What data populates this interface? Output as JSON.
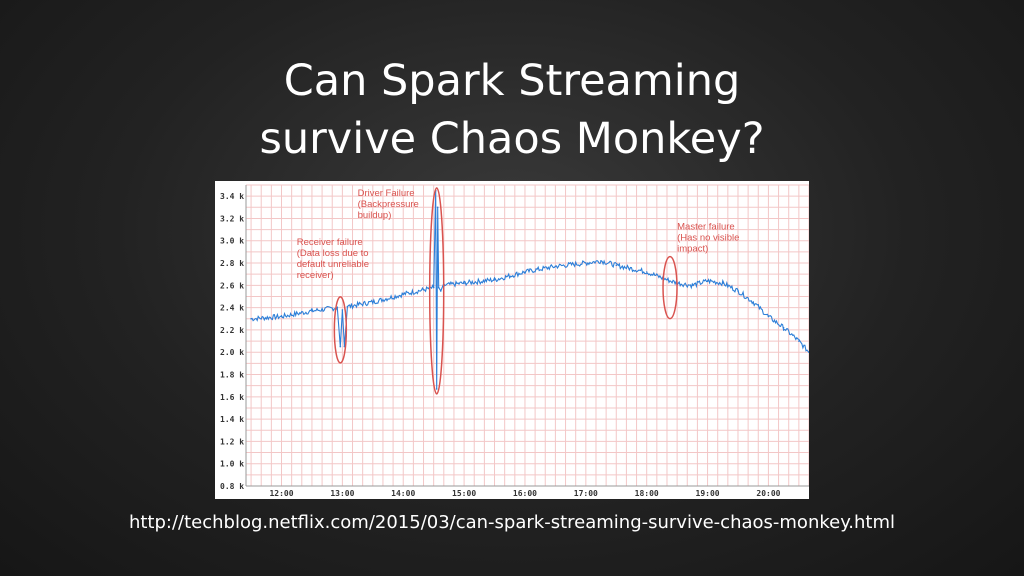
{
  "slide": {
    "title_line1": "Can Spark Streaming",
    "title_line2": "survive Chaos Monkey?",
    "source_url": "http://techblog.netflix.com/2015/03/can-spark-streaming-survive-chaos-monkey.html"
  },
  "colors": {
    "series": "#2d7fd8",
    "annotation": "#d9534f",
    "grid": "#f3c7c7",
    "axis_text": "#333333"
  },
  "chart_data": {
    "type": "line",
    "title": "",
    "xlabel": "",
    "ylabel": "",
    "grid": true,
    "x_unit": "time of day",
    "xlim": [
      "11:25",
      "20:40"
    ],
    "ylim": [
      0.8,
      3.5
    ],
    "x_ticks": [
      "12:00",
      "13:00",
      "14:00",
      "15:00",
      "16:00",
      "17:00",
      "18:00",
      "19:00",
      "20:00"
    ],
    "y_ticks": [
      "0.8 k",
      "1.0 k",
      "1.2 k",
      "1.4 k",
      "1.6 k",
      "1.8 k",
      "2.0 k",
      "2.2 k",
      "2.4 k",
      "2.6 k",
      "2.8 k",
      "3.0 k",
      "3.2 k",
      "3.4 k"
    ],
    "series": [
      {
        "x": [
          "11:30",
          "12:00",
          "12:30",
          "12:55",
          "12:58",
          "13:00",
          "13:02",
          "13:05",
          "13:30",
          "14:00",
          "14:20",
          "14:30",
          "14:32",
          "14:33",
          "14:34",
          "14:35",
          "14:37",
          "14:40",
          "15:00",
          "15:30",
          "16:00",
          "16:30",
          "17:00",
          "17:15",
          "17:30",
          "18:00",
          "18:20",
          "18:30",
          "18:45",
          "19:00",
          "19:15",
          "19:30",
          "19:45",
          "20:00",
          "20:15",
          "20:30",
          "20:40"
        ],
        "y": [
          2.3,
          2.32,
          2.37,
          2.4,
          2.05,
          2.38,
          2.05,
          2.41,
          2.45,
          2.52,
          2.56,
          2.58,
          3.45,
          1.67,
          3.3,
          2.58,
          2.55,
          2.6,
          2.62,
          2.65,
          2.72,
          2.77,
          2.8,
          2.82,
          2.78,
          2.72,
          2.65,
          2.62,
          2.6,
          2.64,
          2.62,
          2.55,
          2.45,
          2.32,
          2.22,
          2.1,
          2.0
        ]
      }
    ],
    "annotations": [
      {
        "lines": [
          "Receiver failure",
          "(Data loss due to",
          "default unreliable",
          " receiver)"
        ]
      },
      {
        "lines": [
          "Driver Failure",
          "(Backpressure",
          " buildup)"
        ]
      },
      {
        "lines": [
          "Master failure",
          "(Has no visible",
          "impact)"
        ]
      }
    ]
  }
}
